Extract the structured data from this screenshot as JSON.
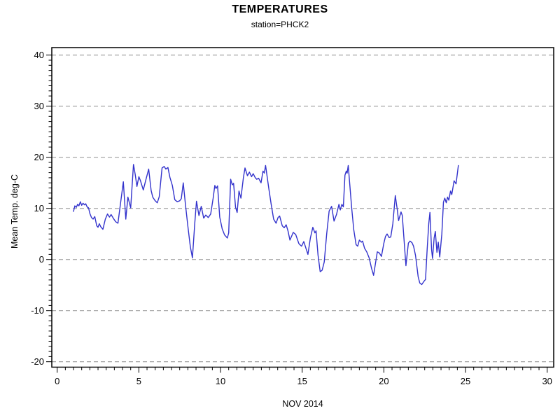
{
  "chart_data": {
    "type": "line",
    "title": "TEMPERATURES",
    "subtitle": "station=PHCK2",
    "xlabel": "NOV 2014",
    "ylabel": "Mean Temp. deg-C",
    "xlim": [
      0,
      30
    ],
    "ylim": [
      -20,
      40
    ],
    "x_ticks": [
      0,
      5,
      10,
      15,
      20,
      25,
      30
    ],
    "y_ticks": [
      -20,
      -10,
      0,
      10,
      20,
      30,
      40
    ],
    "x_minor_step": 0.5,
    "y_minor_step": 1,
    "grid": "horizontal-dashed-at-major-y",
    "legend": "none",
    "line_color": "#3333cc",
    "grid_color": "#909090",
    "axis_color": "#000000",
    "background_color": "#ffffff",
    "series": [
      {
        "name": "Mean Temp. deg-C",
        "x": [
          1.0,
          1.08,
          1.17,
          1.25,
          1.33,
          1.42,
          1.5,
          1.58,
          1.67,
          1.75,
          1.83,
          1.92,
          2.0,
          2.1,
          2.2,
          2.3,
          2.42,
          2.5,
          2.58,
          2.67,
          2.8,
          2.95,
          3.08,
          3.2,
          3.3,
          3.45,
          3.58,
          3.72,
          3.88,
          4.05,
          4.2,
          4.33,
          4.5,
          4.67,
          4.78,
          4.88,
          5.0,
          5.1,
          5.27,
          5.42,
          5.6,
          5.75,
          5.85,
          6.0,
          6.13,
          6.25,
          6.42,
          6.55,
          6.65,
          6.78,
          6.9,
          7.05,
          7.2,
          7.35,
          7.5,
          7.6,
          7.72,
          7.85,
          8.0,
          8.15,
          8.28,
          8.42,
          8.53,
          8.68,
          8.82,
          8.97,
          9.1,
          9.25,
          9.4,
          9.55,
          9.65,
          9.73,
          9.82,
          9.95,
          10.1,
          10.25,
          10.42,
          10.5,
          10.62,
          10.72,
          10.8,
          10.92,
          11.02,
          11.13,
          11.25,
          11.4,
          11.5,
          11.65,
          11.77,
          11.9,
          12.0,
          12.13,
          12.22,
          12.33,
          12.48,
          12.6,
          12.68,
          12.76,
          12.95,
          13.1,
          13.25,
          13.4,
          13.52,
          13.62,
          13.78,
          13.9,
          14.02,
          14.13,
          14.25,
          14.45,
          14.6,
          14.8,
          14.96,
          15.1,
          15.25,
          15.35,
          15.5,
          15.65,
          15.78,
          15.85,
          15.97,
          16.1,
          16.22,
          16.35,
          16.5,
          16.65,
          16.8,
          16.95,
          17.1,
          17.25,
          17.33,
          17.43,
          17.52,
          17.62,
          17.7,
          17.75,
          17.82,
          17.92,
          18.03,
          18.16,
          18.3,
          18.4,
          18.5,
          18.62,
          18.7,
          18.82,
          18.95,
          19.1,
          19.25,
          19.37,
          19.5,
          19.6,
          19.72,
          19.85,
          20.0,
          20.1,
          20.2,
          20.32,
          20.42,
          20.55,
          20.7,
          20.82,
          20.9,
          21.05,
          21.13,
          21.35,
          21.5,
          21.6,
          21.72,
          21.82,
          21.94,
          22.1,
          22.2,
          22.32,
          22.45,
          22.55,
          22.65,
          22.75,
          22.82,
          22.92,
          22.98,
          23.08,
          23.15,
          23.25,
          23.33,
          23.42,
          23.55,
          23.65,
          23.73,
          23.82,
          23.9,
          23.98,
          24.08,
          24.16,
          24.3,
          24.42,
          24.56
        ],
        "y": [
          9.4,
          10.5,
          10.2,
          10.8,
          10.5,
          11.3,
          10.6,
          11.0,
          10.7,
          10.9,
          10.3,
          10.1,
          9.0,
          8.2,
          7.9,
          8.4,
          6.6,
          6.3,
          7.0,
          6.4,
          5.9,
          7.9,
          8.9,
          8.3,
          8.8,
          8.0,
          7.4,
          7.1,
          11.0,
          15.2,
          7.9,
          12.2,
          10.1,
          18.6,
          16.6,
          14.3,
          16.2,
          15.4,
          13.6,
          15.5,
          17.7,
          13.5,
          12.2,
          11.5,
          11.1,
          12.3,
          17.9,
          18.2,
          17.7,
          18.0,
          16.1,
          14.5,
          11.7,
          11.3,
          11.5,
          11.9,
          15.0,
          10.8,
          6.5,
          2.5,
          0.3,
          7.0,
          11.4,
          8.6,
          10.4,
          8.1,
          8.7,
          8.2,
          8.9,
          12.0,
          14.5,
          13.9,
          14.4,
          8.3,
          6.0,
          4.8,
          4.2,
          5.2,
          15.7,
          14.6,
          14.9,
          10.2,
          9.2,
          13.4,
          12.0,
          16.0,
          17.9,
          16.4,
          17.1,
          16.2,
          16.8,
          16.0,
          15.7,
          15.9,
          15.0,
          17.3,
          16.9,
          18.4,
          14.0,
          10.8,
          7.9,
          7.1,
          8.2,
          8.5,
          6.6,
          6.2,
          6.8,
          5.6,
          3.8,
          5.3,
          4.9,
          3.1,
          2.6,
          3.5,
          2.0,
          1.0,
          4.2,
          6.3,
          5.2,
          5.6,
          0.9,
          -2.4,
          -2.1,
          -0.5,
          5.0,
          9.5,
          10.4,
          7.5,
          8.8,
          10.8,
          9.7,
          10.8,
          10.3,
          16.5,
          17.3,
          16.9,
          18.4,
          14.5,
          10.1,
          5.8,
          2.9,
          2.6,
          3.8,
          3.4,
          3.6,
          2.2,
          1.5,
          0.3,
          -1.8,
          -3.1,
          -0.5,
          1.5,
          1.3,
          0.6,
          3.2,
          4.5,
          5.0,
          4.3,
          4.4,
          7.0,
          12.5,
          9.8,
          7.6,
          9.3,
          8.6,
          -1.2,
          3.2,
          3.6,
          3.3,
          2.6,
          0.8,
          -3.4,
          -4.6,
          -4.9,
          -4.3,
          -3.9,
          1.9,
          7.0,
          9.2,
          2.0,
          0.2,
          4.2,
          5.5,
          1.4,
          3.4,
          0.5,
          5.0,
          11.2,
          12.0,
          11.1,
          12.2,
          11.6,
          13.4,
          12.7,
          15.4,
          14.8,
          18.4
        ]
      }
    ]
  }
}
